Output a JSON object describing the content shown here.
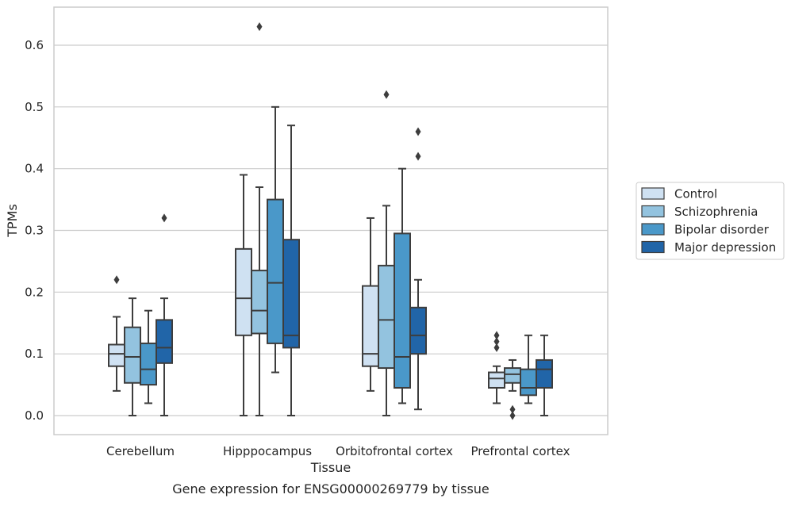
{
  "chart_data": {
    "type": "boxplot",
    "xlabel": "Tissue",
    "ylabel": "TPMs",
    "caption": "Gene expression for ENSG00000269779 by tissue",
    "categories": [
      "Cerebellum",
      "Hipppocampus",
      "Orbitofrontal cortex",
      "Prefrontal cortex"
    ],
    "ylim": [
      -0.03,
      0.66
    ],
    "yticks": [
      0.0,
      0.1,
      0.2,
      0.3,
      0.4,
      0.5,
      0.6
    ],
    "ytick_labels": [
      "0.0",
      "0.1",
      "0.2",
      "0.3",
      "0.4",
      "0.5",
      "0.6"
    ],
    "grid": "horizontal",
    "legend_position": "right",
    "series": [
      {
        "name": "Control",
        "color": "#cfe1f2",
        "boxes": [
          {
            "whislo": 0.04,
            "q1": 0.08,
            "med": 0.1,
            "q3": 0.115,
            "whishi": 0.16,
            "fliers": [
              0.22
            ]
          },
          {
            "whislo": 0.0,
            "q1": 0.13,
            "med": 0.19,
            "q3": 0.27,
            "whishi": 0.39,
            "fliers": []
          },
          {
            "whislo": 0.04,
            "q1": 0.08,
            "med": 0.1,
            "q3": 0.21,
            "whishi": 0.32,
            "fliers": []
          },
          {
            "whislo": 0.02,
            "q1": 0.045,
            "med": 0.06,
            "q3": 0.07,
            "whishi": 0.08,
            "fliers": [
              0.11,
              0.12,
              0.13
            ]
          }
        ]
      },
      {
        "name": "Schizophrenia",
        "color": "#93c3df",
        "boxes": [
          {
            "whislo": 0.0,
            "q1": 0.053,
            "med": 0.095,
            "q3": 0.143,
            "whishi": 0.19,
            "fliers": []
          },
          {
            "whislo": 0.0,
            "q1": 0.133,
            "med": 0.17,
            "q3": 0.235,
            "whishi": 0.37,
            "fliers": [
              0.63
            ]
          },
          {
            "whislo": 0.0,
            "q1": 0.077,
            "med": 0.155,
            "q3": 0.243,
            "whishi": 0.34,
            "fliers": [
              0.52
            ]
          },
          {
            "whislo": 0.04,
            "q1": 0.053,
            "med": 0.067,
            "q3": 0.077,
            "whishi": 0.09,
            "fliers": [
              0.0,
              0.01
            ]
          }
        ]
      },
      {
        "name": "Bipolar disorder",
        "color": "#4a98c9",
        "boxes": [
          {
            "whislo": 0.02,
            "q1": 0.05,
            "med": 0.075,
            "q3": 0.117,
            "whishi": 0.17,
            "fliers": []
          },
          {
            "whislo": 0.07,
            "q1": 0.117,
            "med": 0.215,
            "q3": 0.35,
            "whishi": 0.5,
            "fliers": []
          },
          {
            "whislo": 0.02,
            "q1": 0.045,
            "med": 0.095,
            "q3": 0.295,
            "whishi": 0.4,
            "fliers": []
          },
          {
            "whislo": 0.02,
            "q1": 0.033,
            "med": 0.045,
            "q3": 0.075,
            "whishi": 0.13,
            "fliers": []
          }
        ]
      },
      {
        "name": "Major depression",
        "color": "#2165a8",
        "boxes": [
          {
            "whislo": 0.0,
            "q1": 0.085,
            "med": 0.11,
            "q3": 0.155,
            "whishi": 0.19,
            "fliers": [
              0.32
            ]
          },
          {
            "whislo": 0.0,
            "q1": 0.11,
            "med": 0.13,
            "q3": 0.285,
            "whishi": 0.47,
            "fliers": []
          },
          {
            "whislo": 0.01,
            "q1": 0.1,
            "med": 0.13,
            "q3": 0.175,
            "whishi": 0.22,
            "fliers": [
              0.42,
              0.46
            ]
          },
          {
            "whislo": 0.0,
            "q1": 0.045,
            "med": 0.075,
            "q3": 0.09,
            "whishi": 0.13,
            "fliers": []
          }
        ]
      }
    ]
  }
}
